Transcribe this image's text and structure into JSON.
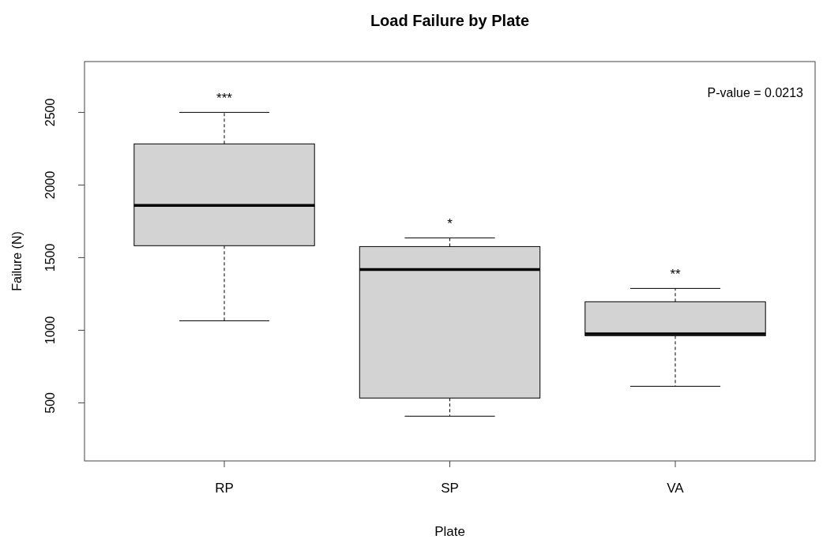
{
  "chart_data": {
    "type": "box",
    "title": "Load Failure by Plate",
    "xlabel": "Plate",
    "ylabel": "Failure (N)",
    "categories": [
      "RP",
      "SP",
      "VA"
    ],
    "series": [
      {
        "color": "#d3d3d3",
        "boxes": [
          {
            "low": 1065,
            "q1": 1582,
            "median": 1859,
            "q3": 2283,
            "high": 2500
          },
          {
            "low": 408,
            "q1": 533,
            "median": 1418,
            "q3": 1576,
            "high": 1636
          },
          {
            "low": 614,
            "q1": 962,
            "median": 975,
            "q3": 1196,
            "high": 1288
          }
        ]
      }
    ],
    "ylim": [
      100,
      2850
    ],
    "yticks": [
      500,
      1000,
      1500,
      2000,
      2500
    ],
    "annotations": [
      "***",
      "*",
      "**",
      "P-value = 0.0213"
    ]
  }
}
